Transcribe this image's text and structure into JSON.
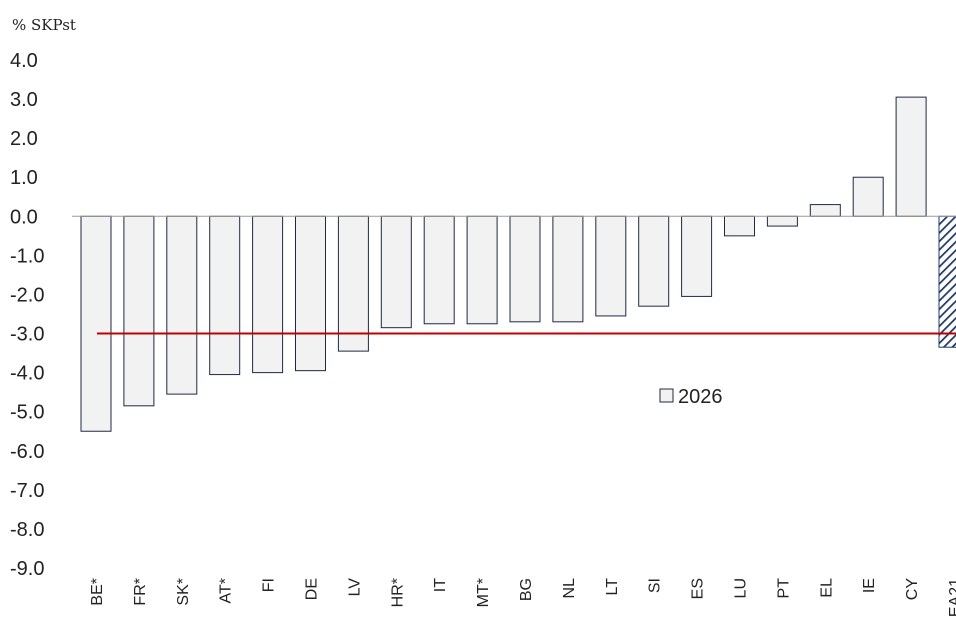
{
  "chart_data": {
    "type": "bar",
    "ylabel": "% SKPst",
    "ylim": [
      -9.0,
      4.0
    ],
    "yticks": [
      "4.0",
      "3.0",
      "2.0",
      "1.0",
      "0.0",
      "-1.0",
      "-2.0",
      "-3.0",
      "-4.0",
      "-5.0",
      "-6.0",
      "-7.0",
      "-8.0",
      "-9.0"
    ],
    "categories": [
      "BE*",
      "FR*",
      "SK*",
      "AT*",
      "FI",
      "DE",
      "LV",
      "HR*",
      "IT",
      "MT*",
      "BG",
      "NL",
      "LT",
      "SI",
      "ES",
      "LU",
      "PT",
      "EL",
      "IE",
      "CY",
      "EA21"
    ],
    "series": [
      {
        "name": "2026",
        "values": [
          -5.5,
          -4.85,
          -4.55,
          -4.05,
          -4.0,
          -3.95,
          -3.45,
          -2.85,
          -2.75,
          -2.75,
          -2.7,
          -2.7,
          -2.55,
          -2.3,
          -2.05,
          -0.5,
          -0.25,
          0.3,
          1.0,
          3.05,
          -3.35
        ]
      }
    ],
    "highlighted_category": "EA21",
    "reference_line": {
      "value": -3.0,
      "color": "#c00000"
    },
    "colors": {
      "bar_fill": "#f2f2f2",
      "bar_stroke": "#1f2a40",
      "hatch_fill": "#1f3864"
    },
    "legend": {
      "placement": "center-right"
    },
    "grid": false
  }
}
